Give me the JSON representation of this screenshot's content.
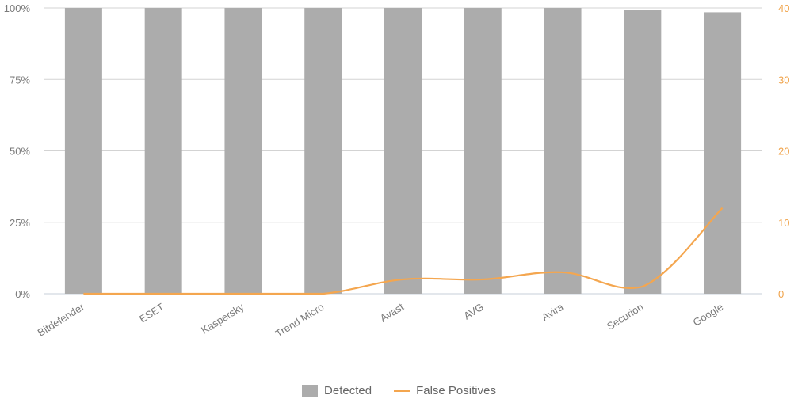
{
  "chart_data": {
    "type": "bar",
    "categories": [
      "Bitdefender",
      "ESET",
      "Kaspersky",
      "Trend Micro",
      "Avast",
      "AVG",
      "Avira",
      "Securion",
      "Google"
    ],
    "series": [
      {
        "name": "Detected",
        "kind": "bar",
        "axis": "left",
        "unit": "%",
        "values": [
          100,
          100,
          100,
          100,
          100,
          100,
          100,
          99.3,
          98.5
        ]
      },
      {
        "name": "False Positives",
        "kind": "line",
        "axis": "right",
        "values": [
          0,
          0,
          0,
          0,
          2,
          2,
          3,
          1,
          12
        ]
      }
    ],
    "y_left": {
      "ticks": [
        "0%",
        "25%",
        "50%",
        "75%",
        "100%"
      ],
      "range": [
        0,
        100
      ]
    },
    "y_right": {
      "ticks": [
        "0",
        "10",
        "20",
        "30",
        "40"
      ],
      "range": [
        0,
        40
      ]
    },
    "grid": true,
    "legend_position": "bottom-center"
  },
  "colors": {
    "bar": "#acacac",
    "line": "#f4a64f",
    "grid": "#d3d3d3",
    "axis": "#c7cfd8"
  }
}
